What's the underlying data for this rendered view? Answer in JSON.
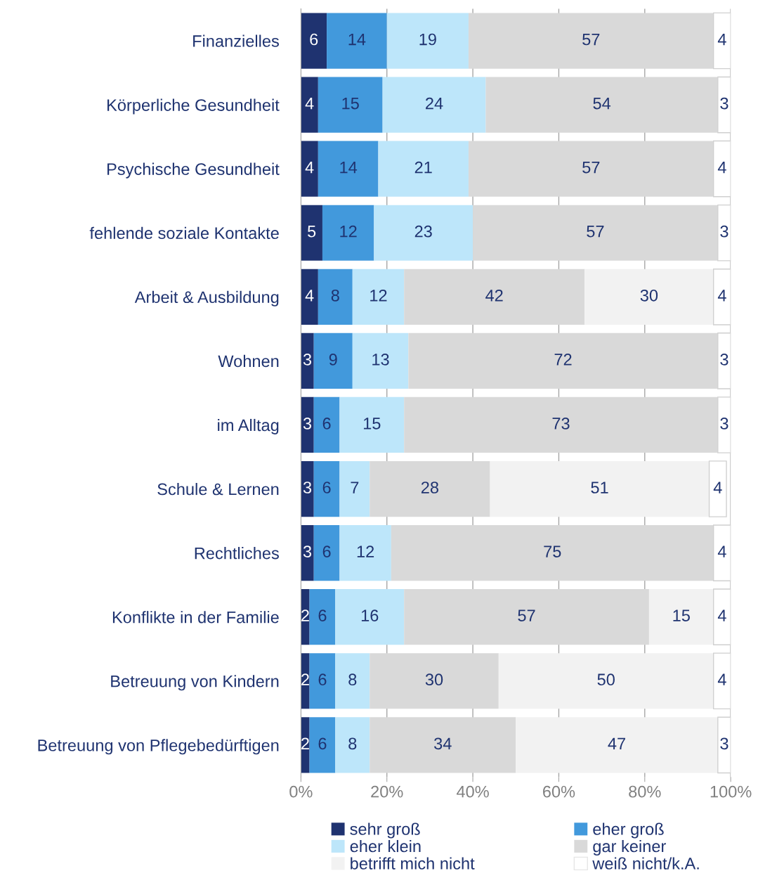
{
  "chart_data": {
    "type": "bar",
    "orientation": "horizontal",
    "stacked": true,
    "data_labels": true,
    "categories": [
      "Finanzielles",
      "Körperliche Gesundheit",
      "Psychische Gesundheit",
      "fehlende soziale Kontakte",
      "Arbeit & Ausbildung",
      "Wohnen",
      "im Alltag",
      "Schule & Lernen",
      "Rechtliches",
      "Konflikte in der Familie",
      "Betreuung von Kindern",
      "Betreuung von Pflegebedürftigen"
    ],
    "series": [
      {
        "name": "sehr groß",
        "color": "#1f3370",
        "values": [
          6,
          4,
          4,
          5,
          4,
          3,
          3,
          3,
          3,
          2,
          2,
          2
        ]
      },
      {
        "name": "eher groß",
        "color": "#4299dc",
        "values": [
          14,
          15,
          14,
          12,
          8,
          9,
          6,
          6,
          6,
          6,
          6,
          6
        ]
      },
      {
        "name": "eher klein",
        "color": "#bde6fa",
        "values": [
          19,
          24,
          21,
          23,
          12,
          13,
          15,
          7,
          12,
          16,
          8,
          8
        ]
      },
      {
        "name": "gar keiner",
        "color": "#d9d9d9",
        "values": [
          57,
          54,
          57,
          57,
          42,
          72,
          73,
          28,
          75,
          57,
          30,
          34
        ]
      },
      {
        "name": "betrifft mich nicht",
        "color": "#f2f2f2",
        "values": [
          null,
          null,
          null,
          null,
          30,
          null,
          null,
          51,
          null,
          15,
          50,
          47
        ]
      },
      {
        "name": "weiß nicht/k.A.",
        "color": "#ffffff",
        "values": [
          4,
          3,
          4,
          3,
          4,
          3,
          3,
          4,
          4,
          4,
          4,
          3
        ]
      }
    ],
    "xlim": [
      0,
      100
    ],
    "xticks": [
      {
        "value": 0,
        "label": "0%"
      },
      {
        "value": 20,
        "label": "20%"
      },
      {
        "value": 40,
        "label": "40%"
      },
      {
        "value": 60,
        "label": "60%"
      },
      {
        "value": 80,
        "label": "80%"
      },
      {
        "value": 100,
        "label": "100%"
      }
    ],
    "grid": "x",
    "legend": "bottom"
  }
}
